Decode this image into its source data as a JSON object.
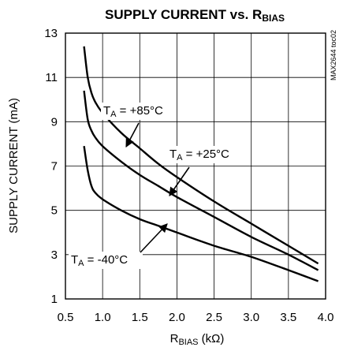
{
  "chart_data": {
    "type": "line",
    "title": {
      "main": "SUPPLY CURRENT vs. R",
      "sub": "BIAS"
    },
    "xlabel": {
      "main": "R",
      "sub": "BIAS",
      "tail": " (kΩ)"
    },
    "ylabel": "SUPPLY CURRENT (mA)",
    "figure_id": "MAX2644 toc02",
    "xlim": [
      0.5,
      4.0
    ],
    "ylim": [
      1,
      13
    ],
    "xticks": [
      "0.5",
      "1.0",
      "1.5",
      "2.0",
      "2.5",
      "3.0",
      "3.5",
      "4.0"
    ],
    "yticks": [
      "1",
      "3",
      "5",
      "7",
      "9",
      "11",
      "13"
    ],
    "grid": true,
    "legend": "none (inline annotations)",
    "series": [
      {
        "name": "TA = +85°C",
        "x": [
          0.75,
          0.8,
          0.85,
          0.9,
          1.0,
          1.25,
          1.5,
          1.75,
          2.0,
          2.5,
          3.0,
          3.5,
          3.9
        ],
        "y": [
          12.4,
          11.0,
          10.3,
          9.9,
          9.4,
          8.5,
          7.8,
          7.1,
          6.5,
          5.4,
          4.4,
          3.4,
          2.6
        ]
      },
      {
        "name": "TA = +25°C",
        "x": [
          0.75,
          0.8,
          0.85,
          0.9,
          1.0,
          1.25,
          1.5,
          1.75,
          2.0,
          2.5,
          3.0,
          3.5,
          3.9
        ],
        "y": [
          10.4,
          9.1,
          8.6,
          8.3,
          7.9,
          7.2,
          6.6,
          6.1,
          5.6,
          4.7,
          3.8,
          3.0,
          2.3
        ]
      },
      {
        "name": "TA = -40°C",
        "x": [
          0.75,
          0.8,
          0.85,
          0.9,
          1.0,
          1.25,
          1.5,
          1.75,
          2.0,
          2.5,
          3.0,
          3.5,
          3.9
        ],
        "y": [
          7.9,
          6.8,
          6.1,
          5.8,
          5.5,
          5.0,
          4.6,
          4.3,
          4.0,
          3.4,
          2.9,
          2.3,
          1.8
        ]
      }
    ],
    "annotations": [
      {
        "main": "T",
        "sub": "A",
        "value": " = +85°C"
      },
      {
        "main": "T",
        "sub": "A",
        "value": " = +25°C"
      },
      {
        "main": "T",
        "sub": "A",
        "value": " = -40°C"
      }
    ]
  }
}
